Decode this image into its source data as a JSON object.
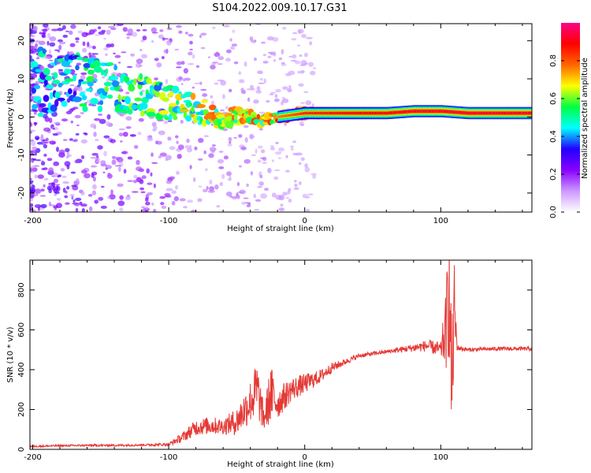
{
  "title": "S104.2022.009.10.17.G31",
  "chart_data": [
    {
      "type": "heatmap",
      "xlabel": "Height of straight line (km)",
      "ylabel": "Frequency (Hz)",
      "xlim": [
        -202,
        167
      ],
      "ylim": [
        -25,
        24.5
      ],
      "x_ticks": [
        -200,
        -100,
        0,
        100
      ],
      "y_ticks": [
        -20,
        -10,
        0,
        10,
        20
      ],
      "colorbar": {
        "label": "Normalized spectral amplitude",
        "range": [
          0,
          1
        ],
        "ticks": [
          0.0,
          0.2,
          0.4,
          0.6,
          0.8
        ],
        "colors": [
          "#ffffff",
          "#cc99ff",
          "#8800ff",
          "#2200ff",
          "#00ffff",
          "#00ff44",
          "#ffff00",
          "#ff6600",
          "#ff0000",
          "#ff0088"
        ]
      },
      "ridge": [
        {
          "x": -200,
          "f": 9,
          "a": 0.45
        },
        {
          "x": -170,
          "f": 9,
          "a": 0.5
        },
        {
          "x": -150,
          "f": 8,
          "a": 0.55
        },
        {
          "x": -130,
          "f": 7,
          "a": 0.6
        },
        {
          "x": -110,
          "f": 5,
          "a": 0.6
        },
        {
          "x": -90,
          "f": 3,
          "a": 0.65
        },
        {
          "x": -75,
          "f": 1,
          "a": 0.7
        },
        {
          "x": -60,
          "f": 0,
          "a": 0.75
        },
        {
          "x": -45,
          "f": 0,
          "a": 0.75
        },
        {
          "x": -30,
          "f": -1,
          "a": 0.75
        },
        {
          "x": -20,
          "f": 0,
          "a": 0.8
        },
        {
          "x": -10,
          "f": 0.5,
          "a": 0.85
        },
        {
          "x": 0,
          "f": 1,
          "a": 0.9
        },
        {
          "x": 20,
          "f": 1,
          "a": 0.92
        },
        {
          "x": 60,
          "f": 1,
          "a": 0.95
        },
        {
          "x": 80,
          "f": 1.5,
          "a": 0.97
        },
        {
          "x": 100,
          "f": 1.5,
          "a": 0.97
        },
        {
          "x": 120,
          "f": 1,
          "a": 0.97
        },
        {
          "x": 167,
          "f": 1,
          "a": 0.97
        }
      ]
    },
    {
      "type": "line",
      "xlabel": "Height of straight line (km)",
      "ylabel": "SNR (10 * v/v)",
      "xlim": [
        -202,
        167
      ],
      "ylim": [
        0,
        950
      ],
      "x_ticks": [
        -200,
        -100,
        0,
        100
      ],
      "y_ticks": [
        0,
        200,
        400,
        600,
        800
      ],
      "color": "#e53935",
      "series": [
        {
          "x": [
            -202,
            -180,
            -160,
            -140,
            -120,
            -100,
            -90,
            -80,
            -70,
            -60,
            -50,
            -40,
            -35,
            -30,
            -25,
            -20,
            -10,
            0,
            10,
            20,
            30,
            40,
            60,
            80,
            90,
            100,
            104,
            106,
            108,
            110,
            112,
            120,
            140,
            167
          ],
          "y": [
            15,
            18,
            20,
            20,
            22,
            25,
            60,
            110,
            120,
            115,
            140,
            240,
            300,
            150,
            280,
            230,
            300,
            330,
            360,
            410,
            440,
            470,
            490,
            510,
            520,
            500,
            600,
            850,
            300,
            700,
            510,
            500,
            505,
            505
          ],
          "noise": [
            5,
            5,
            5,
            5,
            5,
            8,
            25,
            40,
            45,
            40,
            70,
            110,
            150,
            60,
            150,
            80,
            60,
            50,
            35,
            25,
            15,
            12,
            10,
            20,
            30,
            40,
            200,
            400,
            300,
            250,
            15,
            10,
            10,
            10
          ]
        }
      ]
    }
  ]
}
